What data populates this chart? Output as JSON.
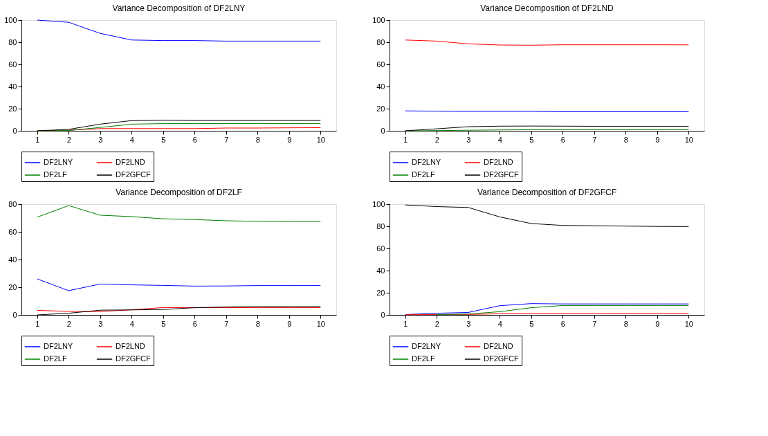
{
  "chart_data": [
    {
      "type": "line",
      "title": "Variance Decomposition of DF2LNY",
      "categories": [
        "1",
        "2",
        "3",
        "4",
        "5",
        "6",
        "7",
        "8",
        "9",
        "10"
      ],
      "ylim": [
        0,
        100
      ],
      "yticks": [
        0,
        20,
        40,
        60,
        80,
        100
      ],
      "legend": "bottom",
      "series": [
        {
          "name": "DF2LNY",
          "color": "#0000ff",
          "values": [
            100,
            98,
            88,
            82,
            81.5,
            81.5,
            81,
            81,
            81,
            81
          ]
        },
        {
          "name": "DF2LND",
          "color": "#ff0000",
          "values": [
            0,
            0.5,
            2,
            2,
            2,
            2,
            2.5,
            2.5,
            2.7,
            2.8
          ]
        },
        {
          "name": "DF2LF",
          "color": "#008000",
          "values": [
            0,
            0.3,
            3,
            6,
            6.5,
            6.5,
            6.5,
            6.5,
            6.5,
            6.5
          ]
        },
        {
          "name": "DF2GFCF",
          "color": "#000000",
          "values": [
            0,
            1.3,
            6,
            9.2,
            9.5,
            9.3,
            9.3,
            9.3,
            9.3,
            9.3
          ]
        }
      ]
    },
    {
      "type": "line",
      "title": "Variance Decomposition of DF2LND",
      "categories": [
        "1",
        "2",
        "3",
        "4",
        "5",
        "6",
        "7",
        "8",
        "9",
        "10"
      ],
      "ylim": [
        0,
        100
      ],
      "yticks": [
        0,
        20,
        40,
        60,
        80,
        100
      ],
      "legend": "bottom",
      "series": [
        {
          "name": "DF2LNY",
          "color": "#0000ff",
          "values": [
            18,
            17.7,
            17.5,
            17.5,
            17.5,
            17.2,
            17.2,
            17.2,
            17.2,
            17.2
          ]
        },
        {
          "name": "DF2LND",
          "color": "#ff0000",
          "values": [
            82,
            81,
            78.5,
            77.5,
            77.3,
            77.7,
            77.7,
            77.7,
            77.7,
            77.6
          ]
        },
        {
          "name": "DF2LF",
          "color": "#008000",
          "values": [
            0,
            0.2,
            0.5,
            0.8,
            1,
            1,
            1,
            1,
            1,
            1
          ]
        },
        {
          "name": "DF2GFCF",
          "color": "#000000",
          "values": [
            0,
            1.8,
            3.7,
            4.2,
            4.3,
            4.2,
            4.1,
            4.1,
            4.1,
            4.1
          ]
        }
      ]
    },
    {
      "type": "line",
      "title": "Variance Decomposition of DF2LF",
      "categories": [
        "1",
        "2",
        "3",
        "4",
        "5",
        "6",
        "7",
        "8",
        "9",
        "10"
      ],
      "ylim": [
        0,
        80
      ],
      "yticks": [
        0,
        20,
        40,
        60,
        80
      ],
      "legend": "bottom",
      "series": [
        {
          "name": "DF2LNY",
          "color": "#0000ff",
          "values": [
            26,
            17.5,
            22.3,
            21.7,
            21.3,
            20.8,
            20.9,
            21.2,
            21.2,
            21.2
          ]
        },
        {
          "name": "DF2LND",
          "color": "#ff0000",
          "values": [
            3.3,
            2.5,
            2.4,
            3.7,
            5.3,
            5.2,
            5.3,
            5.2,
            5.2,
            5.2
          ]
        },
        {
          "name": "DF2LF",
          "color": "#008000",
          "values": [
            70.6,
            79,
            72,
            71,
            69.4,
            68.9,
            68,
            67.6,
            67.5,
            67.5
          ]
        },
        {
          "name": "DF2GFCF",
          "color": "#000000",
          "values": [
            0,
            1.2,
            3.4,
            3.6,
            3.9,
            5.2,
            5.7,
            6,
            6,
            6
          ]
        }
      ]
    },
    {
      "type": "line",
      "title": "Variance Decomposition of DF2GFCF",
      "categories": [
        "1",
        "2",
        "3",
        "4",
        "5",
        "6",
        "7",
        "8",
        "9",
        "10"
      ],
      "ylim": [
        0,
        100
      ],
      "yticks": [
        0,
        20,
        40,
        60,
        80,
        100
      ],
      "legend": "bottom",
      "series": [
        {
          "name": "DF2LNY",
          "color": "#0000ff",
          "values": [
            0.3,
            1.5,
            2.2,
            8.3,
            10.2,
            9.9,
            9.9,
            9.9,
            9.9,
            9.9
          ]
        },
        {
          "name": "DF2LND",
          "color": "#ff0000",
          "values": [
            0.2,
            0.3,
            0.4,
            1,
            1.1,
            1.1,
            1.1,
            1.5,
            1.5,
            1.5
          ]
        },
        {
          "name": "DF2LF",
          "color": "#008000",
          "values": [
            null,
            0.3,
            0.8,
            2.9,
            6.5,
            8.5,
            8.5,
            8.5,
            8.5,
            8.5
          ]
        },
        {
          "name": "DF2GFCF",
          "color": "#000000",
          "values": [
            99.3,
            97.8,
            97,
            88.5,
            82.5,
            80.8,
            80.5,
            80.2,
            79.9,
            79.8
          ]
        }
      ]
    }
  ]
}
